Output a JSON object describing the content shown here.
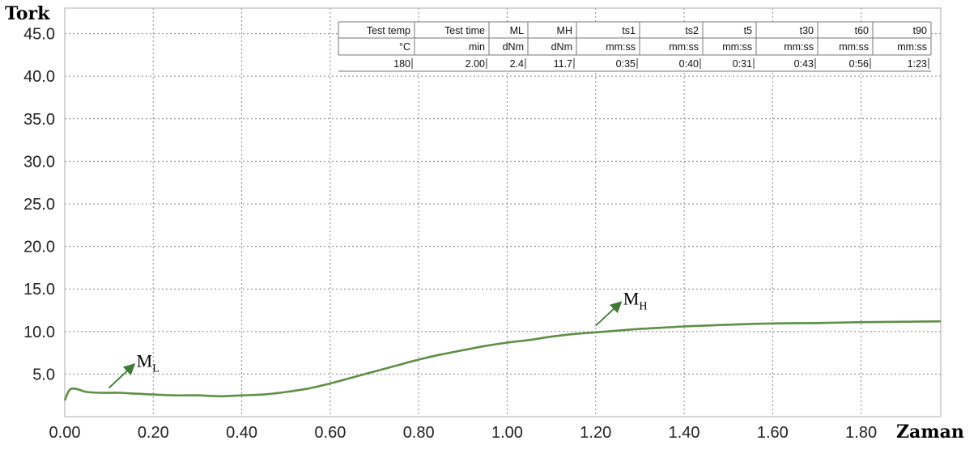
{
  "chart_data": {
    "type": "line",
    "title": "",
    "ylabel": "Tork",
    "xlabel": "Zaman",
    "xlim": [
      0,
      1.98
    ],
    "ylim": [
      0,
      48
    ],
    "grid": true,
    "x_ticks": [
      "0.00",
      "0.20",
      "0.40",
      "0.60",
      "0.80",
      "1.00",
      "1.20",
      "1.40",
      "1.60",
      "1.80"
    ],
    "y_ticks": [
      "5.0",
      "10.0",
      "15.0",
      "20.0",
      "25.0",
      "30.0",
      "35.0",
      "40.0",
      "45.0"
    ],
    "series": [
      {
        "color": "#5e8f45",
        "x": [
          0.0,
          0.01,
          0.02,
          0.03,
          0.05,
          0.08,
          0.12,
          0.16,
          0.2,
          0.25,
          0.3,
          0.35,
          0.4,
          0.45,
          0.5,
          0.55,
          0.6,
          0.65,
          0.7,
          0.75,
          0.8,
          0.85,
          0.9,
          0.95,
          1.0,
          1.05,
          1.1,
          1.15,
          1.2,
          1.25,
          1.3,
          1.35,
          1.4,
          1.45,
          1.5,
          1.6,
          1.7,
          1.8,
          1.9,
          1.98
        ],
        "y": [
          1.9,
          3.1,
          3.3,
          3.2,
          2.9,
          2.8,
          2.8,
          2.7,
          2.6,
          2.5,
          2.5,
          2.4,
          2.5,
          2.6,
          2.9,
          3.3,
          3.9,
          4.6,
          5.3,
          6.0,
          6.7,
          7.3,
          7.8,
          8.3,
          8.7,
          9.0,
          9.4,
          9.7,
          9.9,
          10.1,
          10.3,
          10.45,
          10.6,
          10.7,
          10.8,
          10.95,
          11.0,
          11.1,
          11.15,
          11.2
        ]
      }
    ],
    "annotations": [
      {
        "main": "M",
        "sub": "L",
        "x": 0.1,
        "y": 3.0
      },
      {
        "main": "M",
        "sub": "H",
        "x": 1.2,
        "y": 10.3
      }
    ],
    "table": {
      "headers": [
        "Test temp",
        "Test time",
        "ML",
        "MH",
        "ts1",
        "ts2",
        "t5",
        "t30",
        "t60",
        "t90"
      ],
      "units": [
        "°C",
        "min",
        "dNm",
        "dNm",
        "mm:ss",
        "mm:ss",
        "mm:ss",
        "mm:ss",
        "mm:ss",
        "mm:ss"
      ],
      "values": [
        "180",
        "2.00",
        "2.4",
        "11.7",
        "0:35",
        "0:40",
        "0:31",
        "0:43",
        "0:56",
        "1:23"
      ]
    }
  }
}
